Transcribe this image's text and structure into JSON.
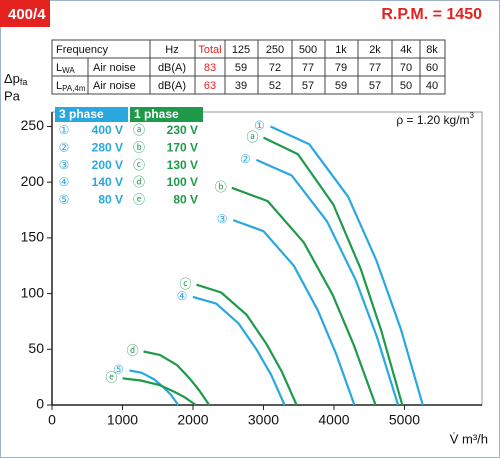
{
  "header": {
    "model": "400/4",
    "rpm": "R.P.M. = 1450"
  },
  "table": {
    "header": [
      "Frequency",
      "Hz",
      "Total",
      "125",
      "250",
      "500",
      "1k",
      "2k",
      "4k",
      "8k"
    ],
    "rows": [
      {
        "symbol": {
          "main": "L",
          "sub": "WA"
        },
        "source": "Air noise",
        "unit": "dB(A)",
        "values": [
          83,
          59,
          72,
          77,
          79,
          77,
          70,
          60
        ]
      },
      {
        "symbol": {
          "main": "L",
          "sub": "PA,4m"
        },
        "source": "Air noise",
        "unit": "dB(A)",
        "values": [
          63,
          39,
          52,
          57,
          59,
          57,
          50,
          40
        ]
      }
    ]
  },
  "chart_data": {
    "type": "line",
    "ylabel": {
      "main": "Δp",
      "sub": "fa"
    },
    "yunit": "Pa",
    "xlabel": "V̇ m³/h",
    "annotation": {
      "text": "ρ = 1.20 kg/m",
      "sup": "3"
    },
    "xlim": [
      0,
      6100
    ],
    "xticks": [
      0,
      1000,
      2000,
      3000,
      4000,
      5000
    ],
    "ylim": [
      0,
      263
    ],
    "yticks": [
      0,
      50,
      100,
      150,
      200,
      250
    ],
    "groups": [
      {
        "title": "3 phase",
        "color": "#29a8e0",
        "series": [
          {
            "symbol": "①",
            "name": "400 V",
            "x": [
              3100,
              3650,
              4200,
              4600,
              4950,
              5260
            ],
            "values": [
              250,
              234,
              187,
              130,
              68,
              0
            ]
          },
          {
            "symbol": "②",
            "name": "280 V",
            "x": [
              2900,
              3400,
              3900,
              4310,
              4610,
              4910
            ],
            "values": [
              220,
              206,
              165,
              112,
              61,
              0
            ]
          },
          {
            "symbol": "③",
            "name": "200 V",
            "x": [
              2570,
              3000,
              3430,
              3770,
              4030,
              4290
            ],
            "values": [
              166,
              156,
              125,
              85,
              46,
              0
            ]
          },
          {
            "symbol": "④",
            "name": "140 V",
            "x": [
              2000,
              2330,
              2650,
              2910,
              3110,
              3300
            ],
            "values": [
              97,
              91,
              73,
              49,
              27,
              0
            ]
          },
          {
            "symbol": "⑤",
            "name": "80 V",
            "x": [
              1100,
              1270,
              1450,
              1580,
              1690,
              1790
            ],
            "values": [
              31,
              29,
              23,
              16,
              9,
              0
            ]
          }
        ]
      },
      {
        "title": "1 phase",
        "color": "#1f9a4a",
        "series": [
          {
            "symbol": "ⓐ",
            "name": "230 V",
            "x": [
              3000,
              3490,
              3990,
              4380,
              4670,
              4970
            ],
            "values": [
              240,
              225,
              180,
              122,
              67,
              0
            ]
          },
          {
            "symbol": "ⓑ",
            "name": "170 V",
            "x": [
              2550,
              3060,
              3570,
              3980,
              4280,
              4590
            ],
            "values": [
              195,
              183,
              146,
              99,
              54,
              0
            ]
          },
          {
            "symbol": "ⓒ",
            "name": "130 V",
            "x": [
              2050,
              2400,
              2760,
              3040,
              3260,
              3470
            ],
            "values": [
              108,
              101,
              81,
              55,
              30,
              0
            ]
          },
          {
            "symbol": "ⓓ",
            "name": "100 V",
            "x": [
              1300,
              1530,
              1770,
              1950,
              2090,
              2230
            ],
            "values": [
              48,
              45,
              36,
              24,
              13,
              0
            ]
          },
          {
            "symbol": "ⓔ",
            "name": "80 V",
            "x": [
              1000,
              1260,
              1520,
              1730,
              1880,
              2040
            ],
            "values": [
              24,
              22,
              18,
              12,
              7,
              0
            ]
          }
        ]
      }
    ]
  }
}
